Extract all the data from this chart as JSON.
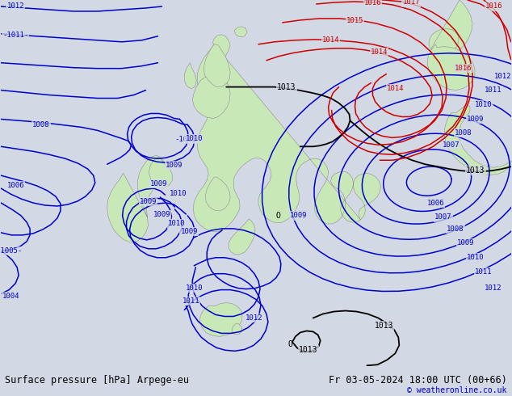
{
  "title_left": "Surface pressure [hPa] Arpege-eu",
  "title_right": "Fr 03-05-2024 18:00 UTC (00+66)",
  "credit": "© weatheronline.co.uk",
  "bg_color": "#d2d8e4",
  "land_color": "#c8e8b8",
  "border_color": "#909090",
  "blue_color": "#0000cc",
  "red_color": "#cc0000",
  "black_color": "#000000",
  "bar_color": "#e0e0e0",
  "font_size_bottom": 8.5
}
